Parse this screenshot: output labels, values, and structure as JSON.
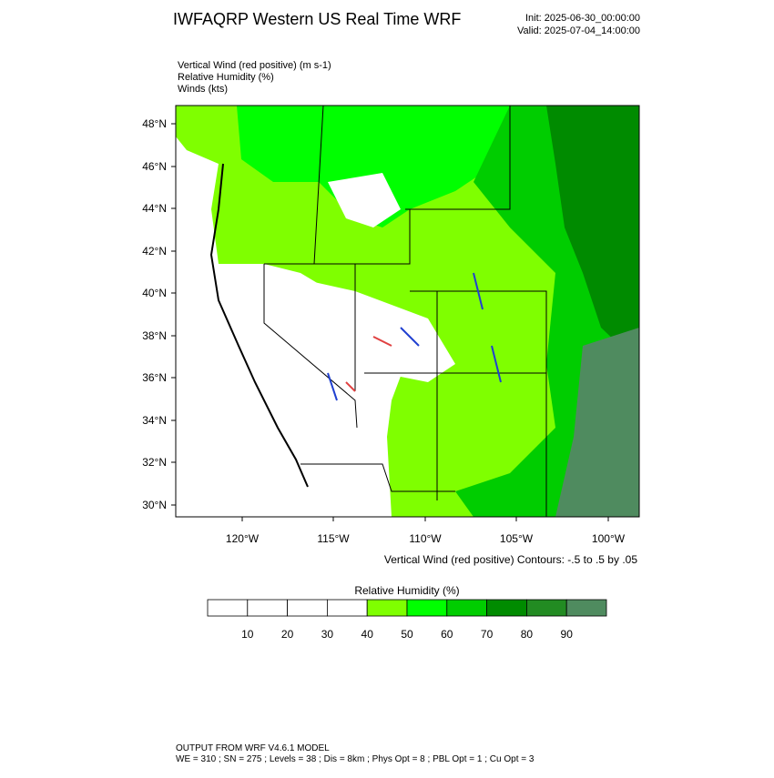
{
  "header": {
    "title": "IWFAQRP Western US Real Time WRF",
    "init": "Init: 2025-06-30_00:00:00",
    "valid": "Valid: 2025-07-04_14:00:00"
  },
  "fields": [
    "Vertical Wind (red positive)   (m s-1)",
    "Relative Humidity   (%)",
    "Winds   (kts)"
  ],
  "map": {
    "lat_labels": [
      "48°N",
      "46°N",
      "44°N",
      "42°N",
      "40°N",
      "38°N",
      "36°N",
      "34°N",
      "32°N",
      "30°N"
    ],
    "lon_labels": [
      "120°W",
      "115°W",
      "110°W",
      "105°W",
      "100°W"
    ],
    "contour_note": "Vertical Wind (red positive) Contours: -.5 to .5 by .05"
  },
  "colorbar": {
    "title": "Relative Humidity   (%)",
    "ticks": [
      10,
      20,
      30,
      40,
      50,
      60,
      70,
      80,
      90
    ],
    "colors": [
      "#ffffff",
      "#ffffff",
      "#ffffff",
      "#ffffff",
      "#7fff00",
      "#00ff00",
      "#00cd00",
      "#008b00",
      "#228b22",
      "#4f8b5f"
    ]
  },
  "footer": {
    "line1": "OUTPUT FROM WRF V4.6.1 MODEL",
    "line2": "WE = 310 ; SN = 275 ; Levels = 38 ; Dis = 8km ; Phys Opt = 8 ; PBL Opt = 1 ; Cu Opt = 3"
  }
}
